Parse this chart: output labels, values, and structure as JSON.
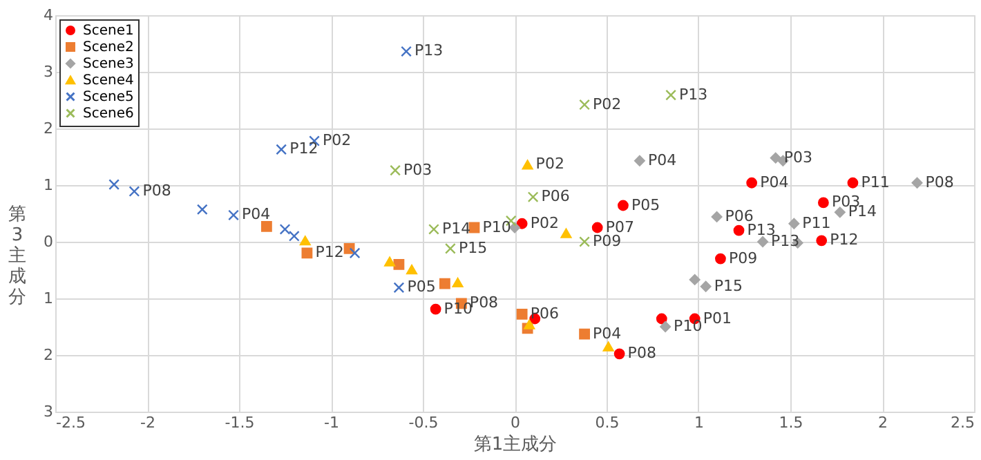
{
  "chart_data": {
    "type": "scatter",
    "xlabel": "第1主成分",
    "ylabel": "第3主成分",
    "xlim": [
      -2.5,
      2.5
    ],
    "xticks": [
      -2.5,
      -2,
      -1.5,
      -1,
      -0.5,
      0,
      0.5,
      1,
      1.5,
      2,
      2.5
    ],
    "ylim": [
      -3,
      4
    ],
    "yticks": [
      {
        "value": -3,
        "label": "3"
      },
      {
        "value": -2,
        "label": "2"
      },
      {
        "value": -1,
        "label": "1"
      },
      0,
      1,
      2,
      3,
      4
    ],
    "grid": true,
    "legend": "top left",
    "series": [
      {
        "name": "Scene1",
        "color": "#ff0000",
        "marker": "circle",
        "x": [
          1.29,
          1.84,
          1.68,
          0.59,
          1.22,
          1.67,
          0.45,
          0.04,
          1.12,
          -0.43,
          0.8,
          0.98,
          0.57,
          0.11
        ],
        "values": [
          1.04,
          1.04,
          0.69,
          0.64,
          0.2,
          0.02,
          0.25,
          0.32,
          -0.3,
          -1.19,
          -1.36,
          -1.36,
          -1.98,
          -1.36
        ]
      },
      {
        "name": "Scene2",
        "color": "#ed7d31",
        "marker": "square",
        "x": [
          -1.35,
          -0.22,
          -1.13,
          -0.9,
          -0.63,
          -0.29,
          0.04,
          0.07,
          0.38,
          -0.38
        ],
        "values": [
          0.27,
          0.25,
          -0.2,
          -0.12,
          -0.4,
          -1.09,
          -1.28,
          -1.53,
          -1.63,
          -0.74
        ]
      },
      {
        "name": "Scene3",
        "color": "#a5a5a5",
        "marker": "diamond",
        "x": [
          0.68,
          1.42,
          1.46,
          2.19,
          1.1,
          1.77,
          1.52,
          1.35,
          1.54,
          0.98,
          1.04,
          0.82,
          0.0
        ],
        "values": [
          1.43,
          1.48,
          1.43,
          1.04,
          0.44,
          0.52,
          0.32,
          0.0,
          -0.02,
          -0.67,
          -0.79,
          -1.5,
          0.25
        ]
      },
      {
        "name": "Scene4",
        "color": "#ffc000",
        "marker": "triangle",
        "x": [
          0.07,
          0.28,
          -1.14,
          -0.68,
          -0.56,
          -0.31,
          0.08,
          0.51
        ],
        "values": [
          1.36,
          0.15,
          0.02,
          -0.35,
          -0.49,
          -0.72,
          -1.46,
          -1.85
        ]
      },
      {
        "name": "Scene5",
        "color": "#4472c4",
        "marker": "cross",
        "x": [
          -0.59,
          -1.09,
          -1.27,
          -2.18,
          -2.07,
          -1.7,
          -1.53,
          -1.25,
          -1.2,
          -0.87,
          -0.63
        ],
        "values": [
          3.36,
          1.78,
          1.63,
          1.01,
          0.89,
          0.57,
          0.47,
          0.22,
          0.1,
          -0.2,
          -0.81
        ]
      },
      {
        "name": "Scene6",
        "color": "#9bbb59",
        "marker": "cross",
        "x": [
          0.38,
          0.85,
          -0.65,
          0.1,
          -0.44,
          -0.35,
          -0.02,
          0.38
        ],
        "values": [
          2.42,
          2.59,
          1.26,
          0.79,
          0.22,
          -0.12,
          0.37,
          0.0
        ]
      }
    ],
    "annotations": [
      {
        "text": "P04",
        "x": 1.29,
        "y": 1.04
      },
      {
        "text": "P11",
        "x": 1.84,
        "y": 1.04
      },
      {
        "text": "P03",
        "x": 1.68,
        "y": 0.69
      },
      {
        "text": "P05",
        "x": 0.59,
        "y": 0.64
      },
      {
        "text": "P13",
        "x": 1.22,
        "y": 0.2
      },
      {
        "text": "P12",
        "x": 1.67,
        "y": 0.02
      },
      {
        "text": "P07",
        "x": 0.45,
        "y": 0.25
      },
      {
        "text": "P02",
        "x": 0.04,
        "y": 0.32
      },
      {
        "text": "P09",
        "x": 1.12,
        "y": -0.3
      },
      {
        "text": "P10",
        "x": -0.43,
        "y": -1.19
      },
      {
        "text": "P01",
        "x": 0.98,
        "y": -1.36
      },
      {
        "text": "P08",
        "x": 0.57,
        "y": -1.98
      },
      {
        "text": "P12",
        "x": -1.13,
        "y": -0.2
      },
      {
        "text": "P10",
        "x": -0.22,
        "y": 0.25
      },
      {
        "text": "P08",
        "x": -0.29,
        "y": -1.09
      },
      {
        "text": "P06",
        "x": 0.04,
        "y": -1.28
      },
      {
        "text": "P04",
        "x": 0.38,
        "y": -1.63
      },
      {
        "text": "P04",
        "x": 0.68,
        "y": 1.43
      },
      {
        "text": "P03",
        "x": 1.42,
        "y": 1.48
      },
      {
        "text": "P08",
        "x": 2.19,
        "y": 1.04
      },
      {
        "text": "P06",
        "x": 1.1,
        "y": 0.44
      },
      {
        "text": "P14",
        "x": 1.77,
        "y": 0.52
      },
      {
        "text": "P11",
        "x": 1.52,
        "y": 0.32
      },
      {
        "text": "P13",
        "x": 1.35,
        "y": 0.0
      },
      {
        "text": "P15",
        "x": 1.04,
        "y": -0.79
      },
      {
        "text": "P10",
        "x": 0.82,
        "y": -1.5
      },
      {
        "text": "P02",
        "x": 0.07,
        "y": 1.36
      },
      {
        "text": "P13",
        "x": -0.59,
        "y": 3.36
      },
      {
        "text": "P02",
        "x": -1.09,
        "y": 1.78
      },
      {
        "text": "P12",
        "x": -1.27,
        "y": 1.63
      },
      {
        "text": "P08",
        "x": -2.07,
        "y": 0.89
      },
      {
        "text": "P04",
        "x": -1.53,
        "y": 0.47
      },
      {
        "text": "P05",
        "x": -0.63,
        "y": -0.81
      },
      {
        "text": "P02",
        "x": 0.38,
        "y": 2.42
      },
      {
        "text": "P13",
        "x": 0.85,
        "y": 2.59
      },
      {
        "text": "P03",
        "x": -0.65,
        "y": 1.26
      },
      {
        "text": "P06",
        "x": 0.1,
        "y": 0.79
      },
      {
        "text": "P14",
        "x": -0.44,
        "y": 0.22
      },
      {
        "text": "P15",
        "x": -0.35,
        "y": -0.12
      },
      {
        "text": "P09",
        "x": 0.38,
        "y": 0.0
      }
    ]
  }
}
